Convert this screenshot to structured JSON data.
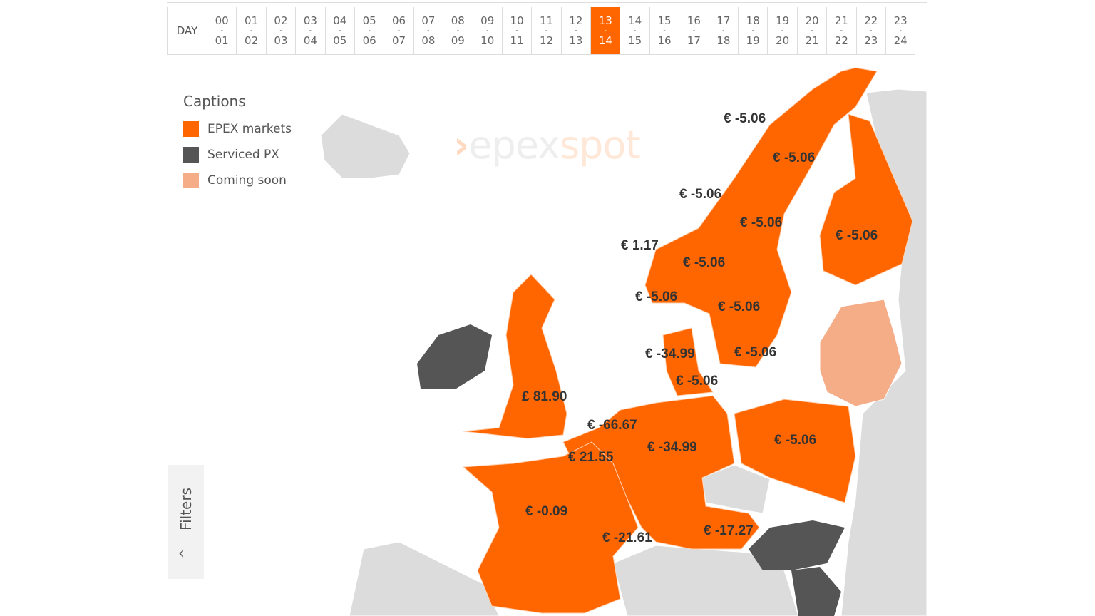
{
  "timebar": {
    "day_label": "DAY",
    "selected": "13-14",
    "slots": [
      [
        "00",
        "01"
      ],
      [
        "01",
        "02"
      ],
      [
        "02",
        "03"
      ],
      [
        "03",
        "04"
      ],
      [
        "04",
        "05"
      ],
      [
        "05",
        "06"
      ],
      [
        "06",
        "07"
      ],
      [
        "07",
        "08"
      ],
      [
        "08",
        "09"
      ],
      [
        "09",
        "10"
      ],
      [
        "10",
        "11"
      ],
      [
        "11",
        "12"
      ],
      [
        "12",
        "13"
      ],
      [
        "13",
        "14"
      ],
      [
        "14",
        "15"
      ],
      [
        "15",
        "16"
      ],
      [
        "16",
        "17"
      ],
      [
        "17",
        "18"
      ],
      [
        "18",
        "19"
      ],
      [
        "19",
        "20"
      ],
      [
        "20",
        "21"
      ],
      [
        "21",
        "22"
      ],
      [
        "22",
        "23"
      ],
      [
        "23",
        "24"
      ]
    ]
  },
  "captions": {
    "title": "Captions",
    "items": [
      {
        "label": "EPEX markets",
        "color": "#ff6600"
      },
      {
        "label": "Serviced PX",
        "color": "#555555"
      },
      {
        "label": "Coming soon",
        "color": "#f5ad88"
      }
    ]
  },
  "logo": {
    "part1": "epex",
    "part2": "spot"
  },
  "prices": {
    "no4": "€ -5.06",
    "se1": "€ -5.06",
    "no3": "€ -5.06",
    "se2": "€ -5.06",
    "fi": "€ -5.06",
    "no5": "€ 1.17",
    "no1": "€ -5.06",
    "no2": "€ -5.06",
    "se3": "€ -5.06",
    "dk1": "€ -34.99",
    "se4": "€ -5.06",
    "dk2": "€ -5.06",
    "gb": "£ 81.90",
    "nl": "€ -66.67",
    "be": "€ 21.55",
    "de": "€ -34.99",
    "pl": "€ -5.06",
    "fr": "€ -0.09",
    "ch": "€ -21.61",
    "at": "€ -17.27"
  },
  "filters": {
    "label": "Filters"
  },
  "colors": {
    "accent": "#ff6600",
    "land": "#dcdcdc",
    "serviced": "#555555",
    "soon": "#f5ad88"
  }
}
